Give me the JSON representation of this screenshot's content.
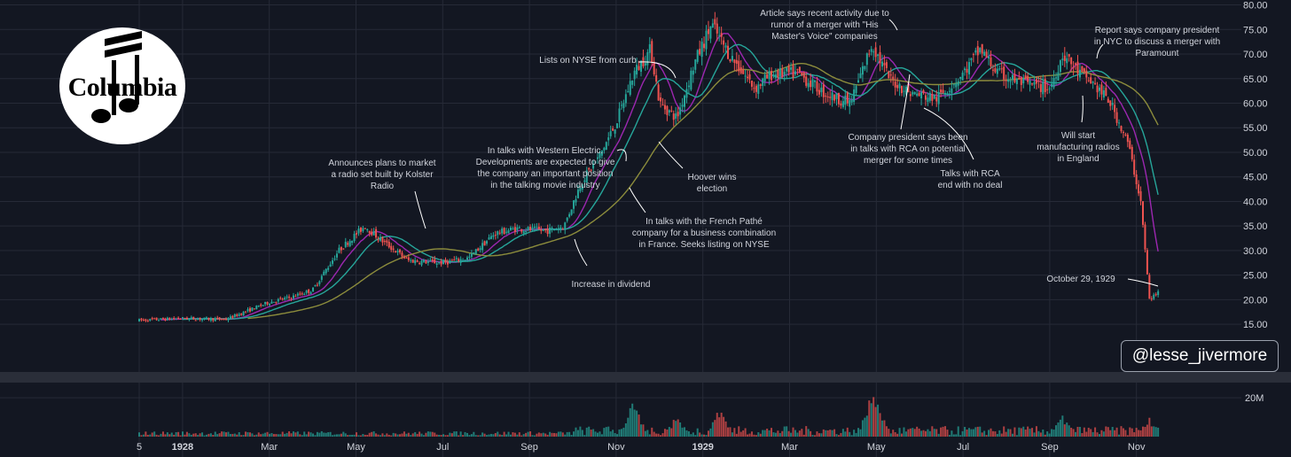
{
  "chart_data": {
    "type": "candlestick",
    "title": "",
    "xlabel": "",
    "ylabel": "",
    "ylim": [
      12.5,
      81
    ],
    "y_ticks": [
      15,
      20,
      25,
      30,
      35,
      40,
      45,
      50,
      55,
      60,
      65,
      70,
      75,
      80
    ],
    "y_tick_labels": [
      "15.00",
      "20.00",
      "25.00",
      "30.00",
      "35.00",
      "40.00",
      "45.00",
      "50.00",
      "55.00",
      "60.00",
      "65.00",
      "70.00",
      "75.00",
      "80.00"
    ],
    "x_ticks": [
      {
        "label": "5",
        "month": 0,
        "bold": false
      },
      {
        "label": "1928",
        "month": 1,
        "bold": true
      },
      {
        "label": "Mar",
        "month": 3,
        "bold": false
      },
      {
        "label": "May",
        "month": 5,
        "bold": false
      },
      {
        "label": "Jul",
        "month": 7,
        "bold": false
      },
      {
        "label": "Sep",
        "month": 9,
        "bold": false
      },
      {
        "label": "Nov",
        "month": 11,
        "bold": false
      },
      {
        "label": "1929",
        "month": 13,
        "bold": true
      },
      {
        "label": "Mar",
        "month": 15,
        "bold": false
      },
      {
        "label": "May",
        "month": 17,
        "bold": false
      },
      {
        "label": "Jul",
        "month": 19,
        "bold": false
      },
      {
        "label": "Sep",
        "month": 21,
        "bold": false
      },
      {
        "label": "Nov",
        "month": 23,
        "bold": false
      }
    ],
    "price_path": [
      [
        0.0,
        15.8
      ],
      [
        1.0,
        16.2
      ],
      [
        2.0,
        16.0
      ],
      [
        3.0,
        19.5
      ],
      [
        3.5,
        20.5
      ],
      [
        4.0,
        22.0
      ],
      [
        4.6,
        30.0
      ],
      [
        5.2,
        35.0
      ],
      [
        5.6,
        32.0
      ],
      [
        6.2,
        28.0
      ],
      [
        7.0,
        27.5
      ],
      [
        7.6,
        28.5
      ],
      [
        8.2,
        33.5
      ],
      [
        8.7,
        34.5
      ],
      [
        9.4,
        34.0
      ],
      [
        9.8,
        35.0
      ],
      [
        10.2,
        44.0
      ],
      [
        10.6,
        49.0
      ],
      [
        11.0,
        56.0
      ],
      [
        11.4,
        66.0
      ],
      [
        11.8,
        71.0
      ],
      [
        12.0,
        60.0
      ],
      [
        12.4,
        57.0
      ],
      [
        12.8,
        68.0
      ],
      [
        13.2,
        76.0
      ],
      [
        13.6,
        70.0
      ],
      [
        14.2,
        63.0
      ],
      [
        14.6,
        66.0
      ],
      [
        15.2,
        66.0
      ],
      [
        15.8,
        62.0
      ],
      [
        16.4,
        60.0
      ],
      [
        16.9,
        72.0
      ],
      [
        17.3,
        65.0
      ],
      [
        17.8,
        62.0
      ],
      [
        18.4,
        61.0
      ],
      [
        19.0,
        66.0
      ],
      [
        19.4,
        71.0
      ],
      [
        19.8,
        66.0
      ],
      [
        20.4,
        64.0
      ],
      [
        21.0,
        63.0
      ],
      [
        21.3,
        70.0
      ],
      [
        21.7,
        66.0
      ],
      [
        22.0,
        64.0
      ],
      [
        22.4,
        60.0
      ],
      [
        22.8,
        52.0
      ],
      [
        23.1,
        40.0
      ],
      [
        23.3,
        20.0
      ],
      [
        23.5,
        21.5
      ]
    ],
    "volume_ticks": [
      20000000
    ],
    "volume_tick_labels": [
      "20M"
    ],
    "volume_max": 26000000,
    "volume_peaks": [
      {
        "month": 11.4,
        "value": 19000000
      },
      {
        "month": 12.4,
        "value": 11000000
      },
      {
        "month": 13.4,
        "value": 16000000
      },
      {
        "month": 16.9,
        "value": 25000000
      },
      {
        "month": 17.0,
        "value": 19000000
      },
      {
        "month": 21.3,
        "value": 11000000
      },
      {
        "month": 23.3,
        "value": 10000000
      }
    ],
    "series": [
      {
        "type": "moving-average",
        "color": "#9c27b0"
      },
      {
        "type": "moving-average",
        "color": "#26a69a"
      },
      {
        "type": "moving-average",
        "color": "#8c8c3c"
      }
    ],
    "up_color": "#26a69a",
    "down_color": "#ef5350"
  },
  "annotations": [
    {
      "id": "kolster",
      "lines": [
        "Announces plans to market",
        "a radio set built by Kolster",
        "Radio"
      ],
      "x": 431,
      "y": 178
    },
    {
      "id": "western-electric",
      "lines": [
        "In talks with Western Electric.",
        "Developments are expected to give",
        "the company an important position",
        "in the talking movie industry"
      ],
      "x": 615,
      "y": 164
    },
    {
      "id": "nyse-curb",
      "lines": [
        "Lists on NYSE from curb"
      ],
      "x": 663,
      "y": 62
    },
    {
      "id": "hoover",
      "lines": [
        "Hoover wins",
        "election"
      ],
      "x": 803,
      "y": 194
    },
    {
      "id": "pathe",
      "lines": [
        "In talks with the French Pathé",
        "company for a business combination",
        "in France. Seeks listing on NYSE"
      ],
      "x": 794,
      "y": 244
    },
    {
      "id": "dividend",
      "lines": [
        "Increase in dividend"
      ],
      "x": 689,
      "y": 315
    },
    {
      "id": "his-masters-voice",
      "lines": [
        "Article says recent activity due to",
        "rumor of a merger with \"His",
        "Master's Voice\" companies"
      ],
      "x": 930,
      "y": 9
    },
    {
      "id": "rca-talks",
      "lines": [
        "Company president says been",
        "in talks with RCA on potential",
        "merger for some times"
      ],
      "x": 1024,
      "y": 149
    },
    {
      "id": "rca-end",
      "lines": [
        "Talks with RCA",
        "end with no deal"
      ],
      "x": 1094,
      "y": 190
    },
    {
      "id": "england",
      "lines": [
        "Will start",
        "manufacturing radios",
        "in England"
      ],
      "x": 1216,
      "y": 147
    },
    {
      "id": "paramount",
      "lines": [
        "Report says company president",
        "in NYC to discuss a merger with",
        "Paramount"
      ],
      "x": 1305,
      "y": 28
    },
    {
      "id": "oct29",
      "lines": [
        "October 29, 1929"
      ],
      "x": 1219,
      "y": 309
    }
  ],
  "logo": {
    "text": "Columbia"
  },
  "watermark": {
    "text": "@lesse_jivermore"
  },
  "colors": {
    "background": "#131722",
    "grid": "#262a37",
    "axis_text": "#d1d4dc",
    "separator": "#2a2e39"
  }
}
